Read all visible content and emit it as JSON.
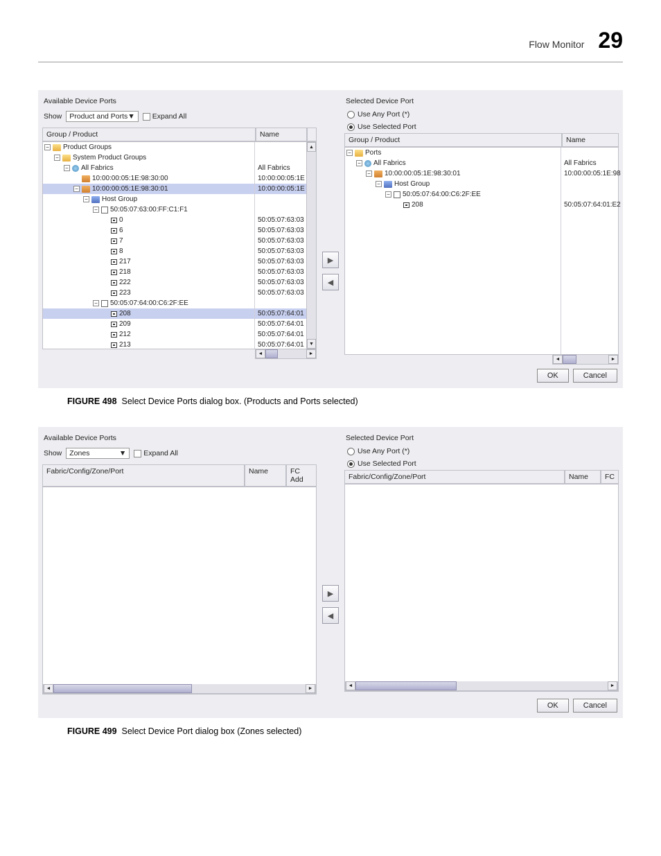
{
  "header": {
    "title": "Flow Monitor",
    "page": "29"
  },
  "fig1": {
    "left_title": "Available Device Ports",
    "right_title": "Selected Device Port",
    "show_label": "Show",
    "show_value": "Product and Ports",
    "expand_label": "Expand All",
    "radio_any": "Use Any Port (*)",
    "radio_selected": "Use Selected Port",
    "col_group": "Group / Product",
    "col_name": "Name",
    "left_tree": [
      {
        "ind": 0,
        "exp": "-",
        "kind": "folder",
        "lbl": "Product Groups",
        "val": ""
      },
      {
        "ind": 1,
        "exp": "-",
        "kind": "folder",
        "lbl": "System Product Groups",
        "val": ""
      },
      {
        "ind": 2,
        "exp": "-",
        "kind": "globe",
        "lbl": "All Fabrics",
        "val": "All Fabrics"
      },
      {
        "ind": 3,
        "exp": "",
        "kind": "sw",
        "lbl": "10:00:00:05:1E:98:30:00",
        "val": "10:00:00:05:1E"
      },
      {
        "ind": 3,
        "exp": "-",
        "kind": "sw",
        "lbl": "10:00:00:05:1E:98:30:01",
        "val": "10:00:00:05:1E",
        "sel": true
      },
      {
        "ind": 4,
        "exp": "-",
        "kind": "host",
        "lbl": "Host Group",
        "val": ""
      },
      {
        "ind": 5,
        "exp": "-",
        "kind": "hba",
        "lbl": "50:05:07:63:00:FF:C1:F1",
        "val": ""
      },
      {
        "ind": 6,
        "exp": "",
        "kind": "port",
        "lbl": "0",
        "val": "50:05:07:63:03"
      },
      {
        "ind": 6,
        "exp": "",
        "kind": "port",
        "lbl": "6",
        "val": "50:05:07:63:03"
      },
      {
        "ind": 6,
        "exp": "",
        "kind": "port",
        "lbl": "7",
        "val": "50:05:07:63:03"
      },
      {
        "ind": 6,
        "exp": "",
        "kind": "port",
        "lbl": "8",
        "val": "50:05:07:63:03"
      },
      {
        "ind": 6,
        "exp": "",
        "kind": "port",
        "lbl": "217",
        "val": "50:05:07:63:03"
      },
      {
        "ind": 6,
        "exp": "",
        "kind": "port",
        "lbl": "218",
        "val": "50:05:07:63:03"
      },
      {
        "ind": 6,
        "exp": "",
        "kind": "port",
        "lbl": "222",
        "val": "50:05:07:63:03"
      },
      {
        "ind": 6,
        "exp": "",
        "kind": "port",
        "lbl": "223",
        "val": "50:05:07:63:03"
      },
      {
        "ind": 5,
        "exp": "-",
        "kind": "hba",
        "lbl": "50:05:07:64:00:C6:2F:EE",
        "val": ""
      },
      {
        "ind": 6,
        "exp": "",
        "kind": "port",
        "lbl": "208",
        "val": "50:05:07:64:01",
        "sel": true
      },
      {
        "ind": 6,
        "exp": "",
        "kind": "port",
        "lbl": "209",
        "val": "50:05:07:64:01"
      },
      {
        "ind": 6,
        "exp": "",
        "kind": "port",
        "lbl": "212",
        "val": "50:05:07:64:01"
      },
      {
        "ind": 6,
        "exp": "",
        "kind": "port",
        "lbl": "213",
        "val": "50:05:07:64:01"
      }
    ],
    "right_tree": [
      {
        "ind": 0,
        "exp": "-",
        "kind": "folder",
        "lbl": "Ports",
        "val": ""
      },
      {
        "ind": 1,
        "exp": "-",
        "kind": "globe",
        "lbl": "All Fabrics",
        "val": "All Fabrics"
      },
      {
        "ind": 2,
        "exp": "-",
        "kind": "sw",
        "lbl": "10:00:00:05:1E:98:30:01",
        "val": "10:00:00:05:1E:98"
      },
      {
        "ind": 3,
        "exp": "-",
        "kind": "host",
        "lbl": "Host Group",
        "val": ""
      },
      {
        "ind": 4,
        "exp": "-",
        "kind": "hba",
        "lbl": "50:05:07:64:00:C6:2F:EE",
        "val": ""
      },
      {
        "ind": 5,
        "exp": "",
        "kind": "port",
        "lbl": "208",
        "val": "50:05:07:64:01:E2"
      }
    ],
    "ok": "OK",
    "cancel": "Cancel",
    "caption_prefix": "FIGURE 498",
    "caption_text": "Select Device Ports dialog box. (Products and Ports selected)"
  },
  "fig2": {
    "left_title": "Available Device Ports",
    "right_title": "Selected Device Port",
    "show_label": "Show",
    "show_value": "Zones",
    "expand_label": "Expand All",
    "radio_any": "Use Any Port (*)",
    "radio_selected": "Use Selected Port",
    "col_fabric": "Fabric/Config/Zone/Port",
    "col_name": "Name",
    "col_fc": "FC Add",
    "col_fc_r": "FC",
    "ok": "OK",
    "cancel": "Cancel",
    "caption_prefix": "FIGURE 499",
    "caption_text": "Select Device Port dialog box (Zones selected)"
  }
}
